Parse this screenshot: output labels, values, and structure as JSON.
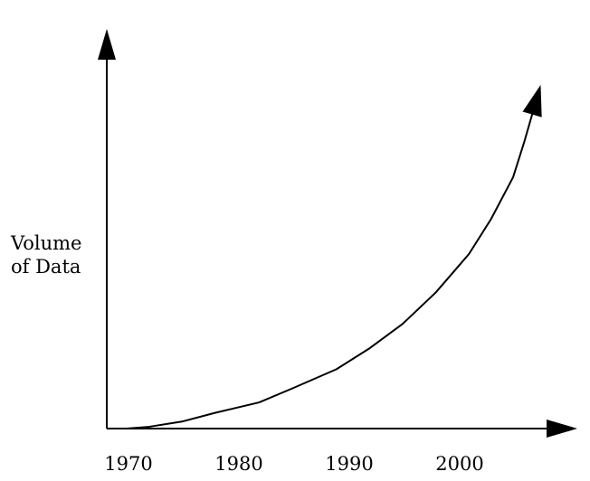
{
  "chart_data": {
    "type": "line",
    "title": "",
    "ylabel_lines": [
      "Volume",
      "of Data"
    ],
    "xlabel": "",
    "x_ticks": [
      "1970",
      "1980",
      "1990",
      "2000"
    ],
    "xlim": [
      1970,
      2008
    ],
    "ylim": [
      0,
      100
    ],
    "grid": false,
    "legend": "none",
    "y_ticks_shown": false,
    "series": [
      {
        "x": [
          1970,
          1972,
          1975,
          1978,
          1982,
          1985,
          1989,
          1992,
          1995,
          1998,
          2001,
          2003,
          2005,
          2006,
          2007
        ],
        "values": [
          0,
          0.5,
          2,
          4.5,
          7.5,
          11.5,
          17,
          23,
          30,
          39,
          50,
          60,
          72,
          82,
          93
        ]
      }
    ],
    "colors": {
      "axes": "#000000",
      "line": "#000000",
      "background": "#ffffff"
    }
  }
}
